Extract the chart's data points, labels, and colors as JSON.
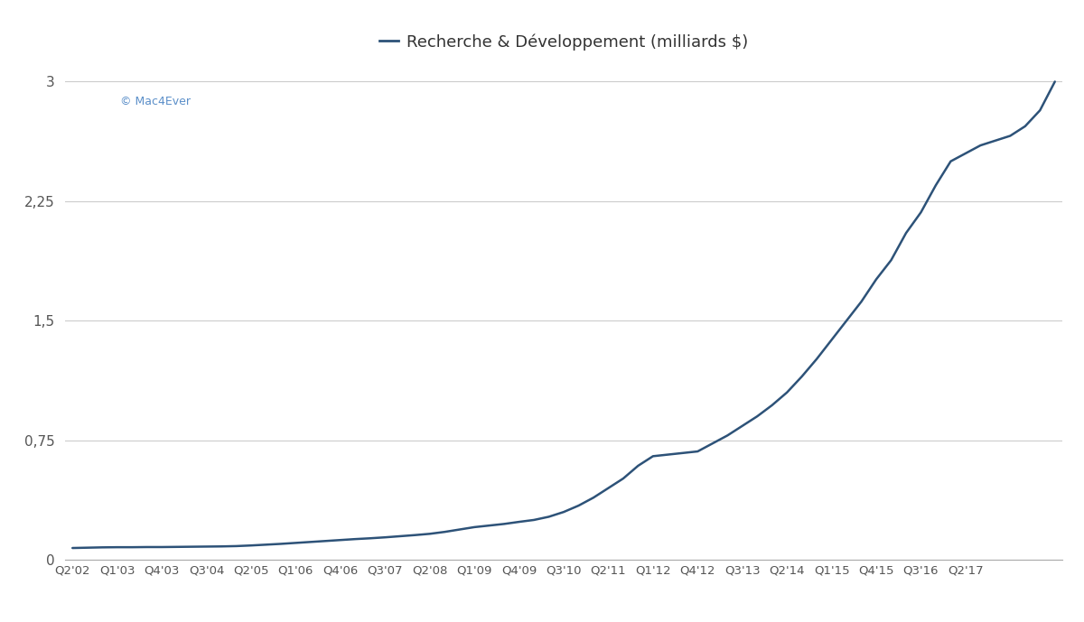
{
  "title": "Recherche & Développement (milliards $)",
  "line_color": "#2d5278",
  "background_color": "#ffffff",
  "watermark": "© Mac4Ever",
  "watermark_color": "#5b8fc9",
  "yticks": [
    0,
    0.75,
    1.5,
    2.25,
    3
  ],
  "ytick_labels": [
    "0",
    "0,75",
    "1,5",
    "2,25",
    "3"
  ],
  "ylim": [
    0,
    3.2
  ],
  "x_labels": [
    "Q2'02",
    "Q1'03",
    "Q4'03",
    "Q3'04",
    "Q2'05",
    "Q1'06",
    "Q4'06",
    "Q3'07",
    "Q2'08",
    "Q1'09",
    "Q4'09",
    "Q3'10",
    "Q2'11",
    "Q1'12",
    "Q4'12",
    "Q3'13",
    "Q2'14",
    "Q1'15",
    "Q4'15",
    "Q3'16",
    "Q2'17"
  ],
  "rd_data": [
    0.074,
    0.076,
    0.078,
    0.079,
    0.079,
    0.08,
    0.08,
    0.081,
    0.082,
    0.083,
    0.084,
    0.086,
    0.09,
    0.095,
    0.1,
    0.106,
    0.112,
    0.118,
    0.124,
    0.13,
    0.135,
    0.141,
    0.148,
    0.155,
    0.163,
    0.175,
    0.19,
    0.205,
    0.215,
    0.225,
    0.238,
    0.25,
    0.27,
    0.3,
    0.34,
    0.39,
    0.45,
    0.51,
    0.59,
    0.65,
    0.66,
    0.67,
    0.68,
    0.73,
    0.78,
    0.84,
    0.9,
    0.97,
    1.05,
    1.15,
    1.26,
    1.38,
    1.5,
    1.62,
    1.76,
    1.88,
    2.05,
    2.18,
    2.35,
    2.5,
    2.55,
    2.6,
    2.63,
    2.66,
    2.72,
    2.82,
    3.0
  ],
  "line_width": 1.8,
  "tick_fontsize": 9.5,
  "ytick_fontsize": 11,
  "legend_fontsize": 13
}
